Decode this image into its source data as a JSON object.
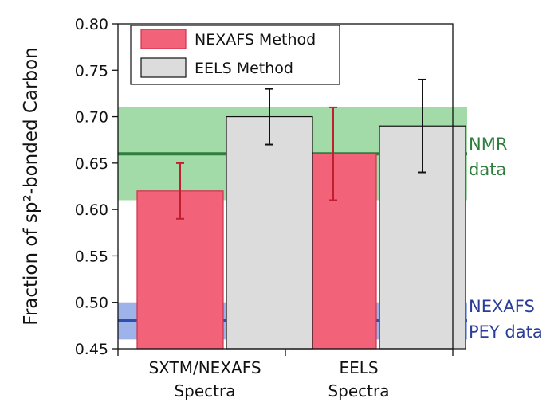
{
  "chart_data": {
    "type": "bar",
    "ylabel": "Fraction of sp²-bonded Carbon",
    "ylim": [
      0.45,
      0.8
    ],
    "yticks": [
      0.45,
      0.5,
      0.55,
      0.6,
      0.65,
      0.7,
      0.75,
      0.8
    ],
    "categories": [
      {
        "line1": "SXTM/NEXAFS",
        "line2": "Spectra"
      },
      {
        "line1": "EELS",
        "line2": "Spectra"
      }
    ],
    "series": [
      {
        "name": "NEXAFS Method",
        "color": "#f2637a",
        "edge": "#d0304c",
        "errcolor": "#c0202e",
        "values": [
          0.62,
          0.66
        ],
        "err_low": [
          0.59,
          0.61
        ],
        "err_high": [
          0.65,
          0.71
        ]
      },
      {
        "name": "EELS Method",
        "color": "#dcdcdc",
        "edge": "#111111",
        "errcolor": "#111111",
        "values": [
          0.7,
          0.69
        ],
        "err_low": [
          0.67,
          0.64
        ],
        "err_high": [
          0.73,
          0.74
        ]
      }
    ],
    "legend": "top-left",
    "grid": false,
    "reference_bands": [
      {
        "label_lines": [
          "NMR",
          "data"
        ],
        "value": 0.66,
        "low": 0.61,
        "high": 0.71,
        "band_color": "#a3dba8",
        "line_color": "#2e7d3c",
        "text_color": "#2e7d3c"
      },
      {
        "label_lines": [
          "NEXAFS",
          "PEY data"
        ],
        "value": 0.48,
        "low": 0.46,
        "high": 0.5,
        "band_color": "#9db3ea",
        "line_color": "#2f4fae",
        "text_color": "#2b3d99"
      }
    ]
  }
}
